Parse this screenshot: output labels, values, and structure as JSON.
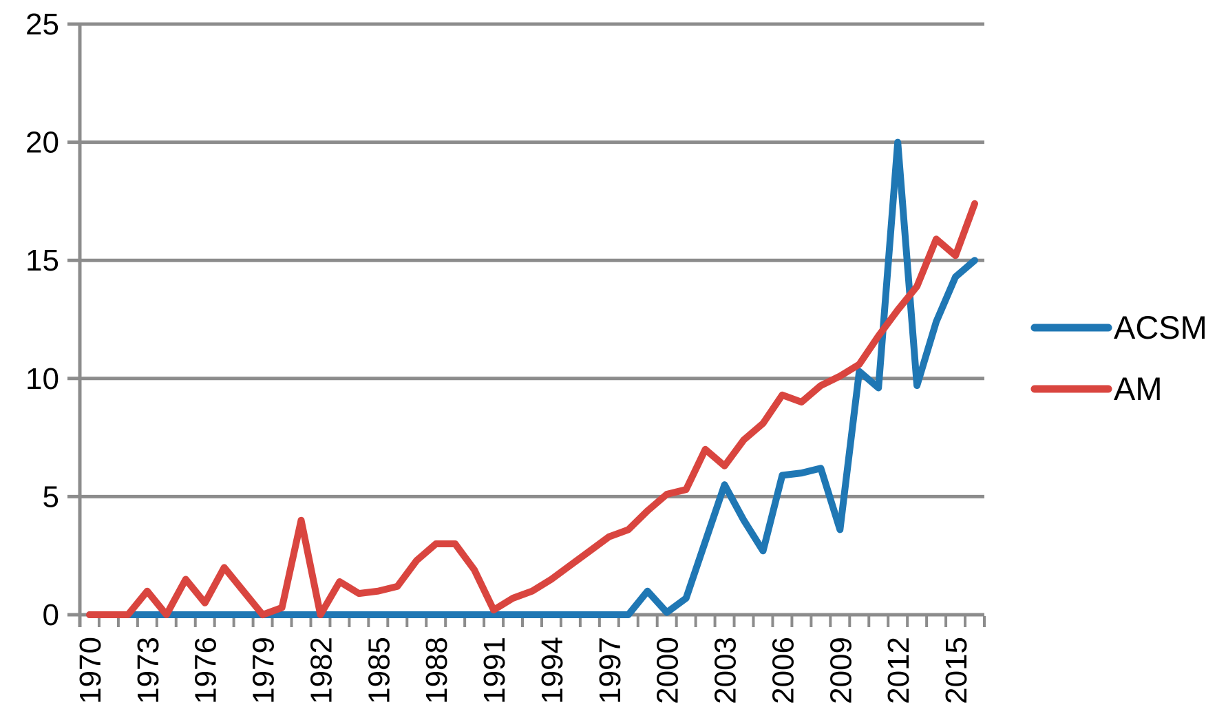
{
  "chart_data": {
    "type": "line",
    "title": "",
    "xlabel": "",
    "ylabel": "",
    "x": [
      1970,
      1971,
      1972,
      1973,
      1974,
      1975,
      1976,
      1977,
      1978,
      1979,
      1980,
      1981,
      1982,
      1983,
      1984,
      1985,
      1986,
      1987,
      1988,
      1989,
      1990,
      1991,
      1992,
      1993,
      1994,
      1995,
      1996,
      1997,
      1998,
      1999,
      2000,
      2001,
      2002,
      2003,
      2004,
      2005,
      2006,
      2007,
      2008,
      2009,
      2010,
      2011,
      2012,
      2013,
      2014,
      2015,
      2016
    ],
    "series": [
      {
        "name": "ACSM",
        "color": "#1F77B4",
        "values": [
          0,
          0,
          0,
          0,
          0,
          0,
          0,
          0,
          0,
          0,
          0,
          0,
          0,
          0,
          0,
          0,
          0,
          0,
          0,
          0,
          0,
          0,
          0,
          0,
          0,
          0,
          0,
          0,
          0,
          1,
          0.1,
          0.7,
          3.1,
          5.5,
          4,
          2.7,
          5.9,
          6,
          6.2,
          3.6,
          10.3,
          9.6,
          20,
          9.7,
          12.4,
          14.3,
          15
        ]
      },
      {
        "name": "AM",
        "color": "#D9453F",
        "values": [
          0,
          0,
          0,
          1,
          0,
          1.5,
          0.5,
          2,
          1,
          0,
          0.3,
          4,
          0,
          1.4,
          0.9,
          1,
          1.2,
          2.3,
          3,
          3,
          1.9,
          0.2,
          0.7,
          1,
          1.5,
          2.1,
          2.7,
          3.3,
          3.6,
          4.4,
          5.1,
          5.3,
          7,
          6.3,
          7.4,
          8.1,
          9.3,
          9,
          9.7,
          10.1,
          10.6,
          11.8,
          12.9,
          13.9,
          15.9,
          15.2,
          17.4
        ]
      }
    ],
    "ylim": [
      0,
      25
    ],
    "yticks": [
      "0",
      "5",
      "10",
      "15",
      "20",
      "25"
    ],
    "xtick_labels": [
      "1970",
      "1973",
      "1976",
      "1979",
      "1982",
      "1985",
      "1988",
      "1991",
      "1994",
      "1997",
      "2000",
      "2003",
      "2006",
      "2009",
      "2012",
      "2015"
    ],
    "xtick_label_every": 3,
    "grid": true,
    "gridline_color": "#8C8C8C",
    "axis_color": "#8C8C8C",
    "background": "#FFFFFF",
    "legend_position": "right",
    "legend": [
      {
        "label": "ACSM",
        "color": "#1F77B4"
      },
      {
        "label": "AM",
        "color": "#D9453F"
      }
    ]
  }
}
